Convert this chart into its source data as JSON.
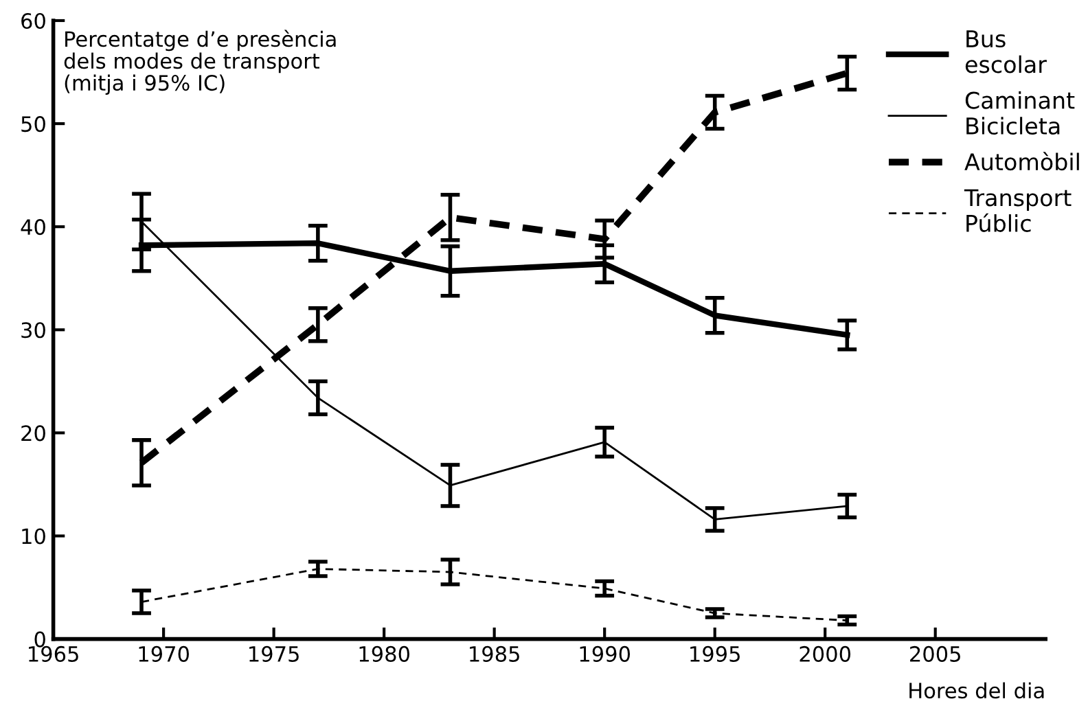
{
  "chart_data": {
    "type": "line",
    "ylabel": "Percentatge d’e presència\ndels modes de transport\n(mitja i 95% IC)",
    "xlabel": "Hores del dia",
    "x": [
      1969,
      1977,
      1983,
      1990,
      1995,
      2001
    ],
    "xlim": [
      1965,
      2010
    ],
    "xticks": [
      1965,
      1970,
      1975,
      1980,
      1985,
      1990,
      1995,
      2000,
      2005
    ],
    "ylim": [
      0,
      60
    ],
    "yticks": [
      0,
      10,
      20,
      30,
      40,
      50,
      60
    ],
    "grid": false,
    "legend": "top right",
    "marker": "none",
    "series": [
      {
        "name": "Bus\nescolar",
        "color": "#000000",
        "line_style": "solid",
        "values": [
          38.2,
          38.4,
          35.7,
          36.4,
          31.4,
          29.5
        ],
        "errors": [
          2.5,
          1.7,
          2.4,
          1.8,
          1.7,
          1.4
        ]
      },
      {
        "name": "Caminant\nBicicleta",
        "color": "#000000",
        "line_style": "solid",
        "values": [
          40.5,
          23.4,
          14.9,
          19.1,
          11.6,
          12.9
        ],
        "errors": [
          2.7,
          1.6,
          2.0,
          1.4,
          1.1,
          1.1
        ]
      },
      {
        "name": "Automòbil",
        "color": "#000000",
        "line_style": "dashed",
        "values": [
          17.1,
          30.5,
          40.9,
          38.8,
          51.1,
          54.9
        ],
        "errors": [
          2.2,
          1.6,
          2.2,
          1.8,
          1.6,
          1.6
        ]
      },
      {
        "name": "Transport\nPúblic",
        "color": "#000000",
        "line_style": "dashed",
        "values": [
          3.6,
          6.8,
          6.5,
          4.9,
          2.5,
          1.8
        ],
        "errors": [
          1.1,
          0.7,
          1.2,
          0.7,
          0.4,
          0.4
        ]
      }
    ]
  }
}
